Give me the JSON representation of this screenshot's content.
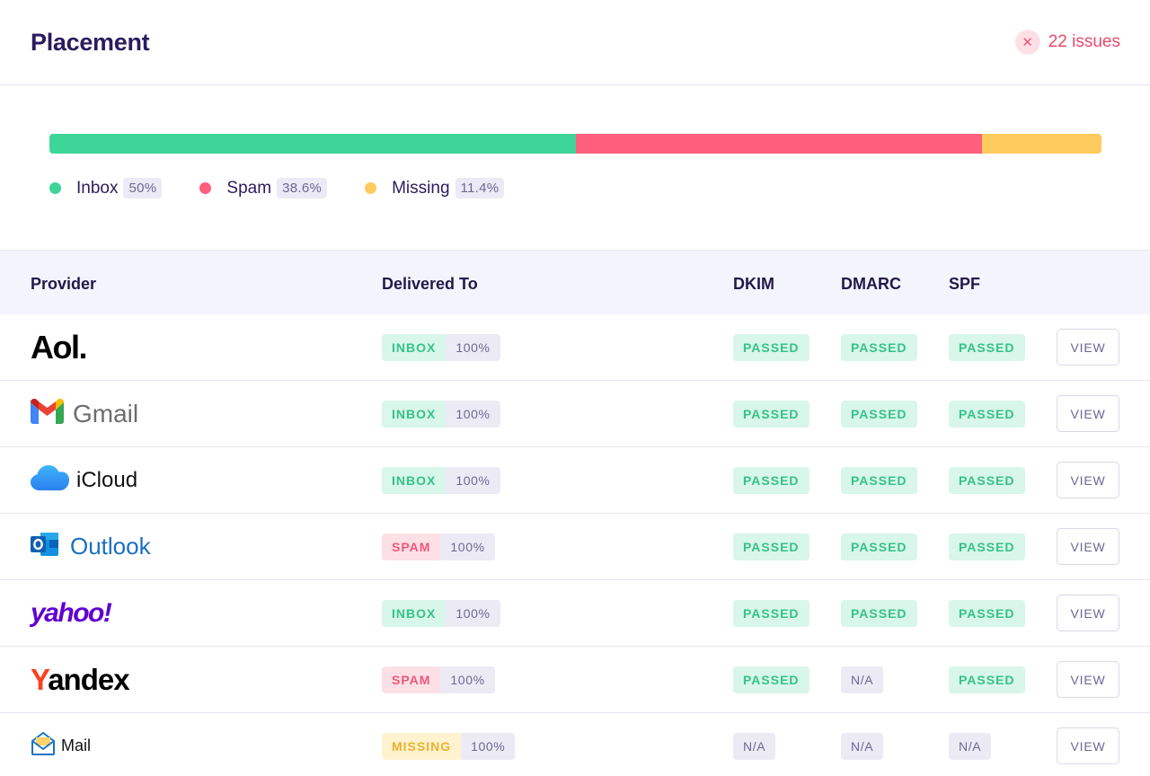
{
  "header": {
    "title": "Placement",
    "issues_icon": "close-icon",
    "issues_label": "22 issues"
  },
  "placement_bar": [
    {
      "name": "Inbox",
      "pct_text": "50%",
      "share": 0.5,
      "color": "#3ed598"
    },
    {
      "name": "Spam",
      "pct_text": "38.6%",
      "share": 0.386,
      "color": "#ff5e7c"
    },
    {
      "name": "Missing",
      "pct_text": "11.4%",
      "share": 0.114,
      "color": "#ffca5e"
    }
  ],
  "table": {
    "headers": {
      "provider": "Provider",
      "delivered": "Delivered To",
      "dkim": "DKIM",
      "dmarc": "DMARC",
      "spf": "SPF"
    },
    "view_label": "VIEW",
    "rows": [
      {
        "provider": "Aol.",
        "logo": "aol-logo",
        "status": "INBOX",
        "pct": "100%",
        "dkim": "PASSED",
        "dmarc": "PASSED",
        "spf": "PASSED"
      },
      {
        "provider": "Gmail",
        "logo": "gmail-logo",
        "status": "INBOX",
        "pct": "100%",
        "dkim": "PASSED",
        "dmarc": "PASSED",
        "spf": "PASSED"
      },
      {
        "provider": "iCloud",
        "logo": "icloud-logo",
        "status": "INBOX",
        "pct": "100%",
        "dkim": "PASSED",
        "dmarc": "PASSED",
        "spf": "PASSED"
      },
      {
        "provider": "Outlook",
        "logo": "outlook-logo",
        "status": "SPAM",
        "pct": "100%",
        "dkim": "PASSED",
        "dmarc": "PASSED",
        "spf": "PASSED"
      },
      {
        "provider": "yahoo!",
        "logo": "yahoo-logo",
        "status": "INBOX",
        "pct": "100%",
        "dkim": "PASSED",
        "dmarc": "PASSED",
        "spf": "PASSED"
      },
      {
        "provider": "Yandex",
        "logo": "yandex-logo",
        "status": "SPAM",
        "pct": "100%",
        "dkim": "PASSED",
        "dmarc": "N/A",
        "spf": "PASSED"
      },
      {
        "provider": "Mail",
        "logo": "mail-logo",
        "status": "MISSING",
        "pct": "100%",
        "dkim": "N/A",
        "dmarc": "N/A",
        "spf": "N/A"
      }
    ]
  }
}
